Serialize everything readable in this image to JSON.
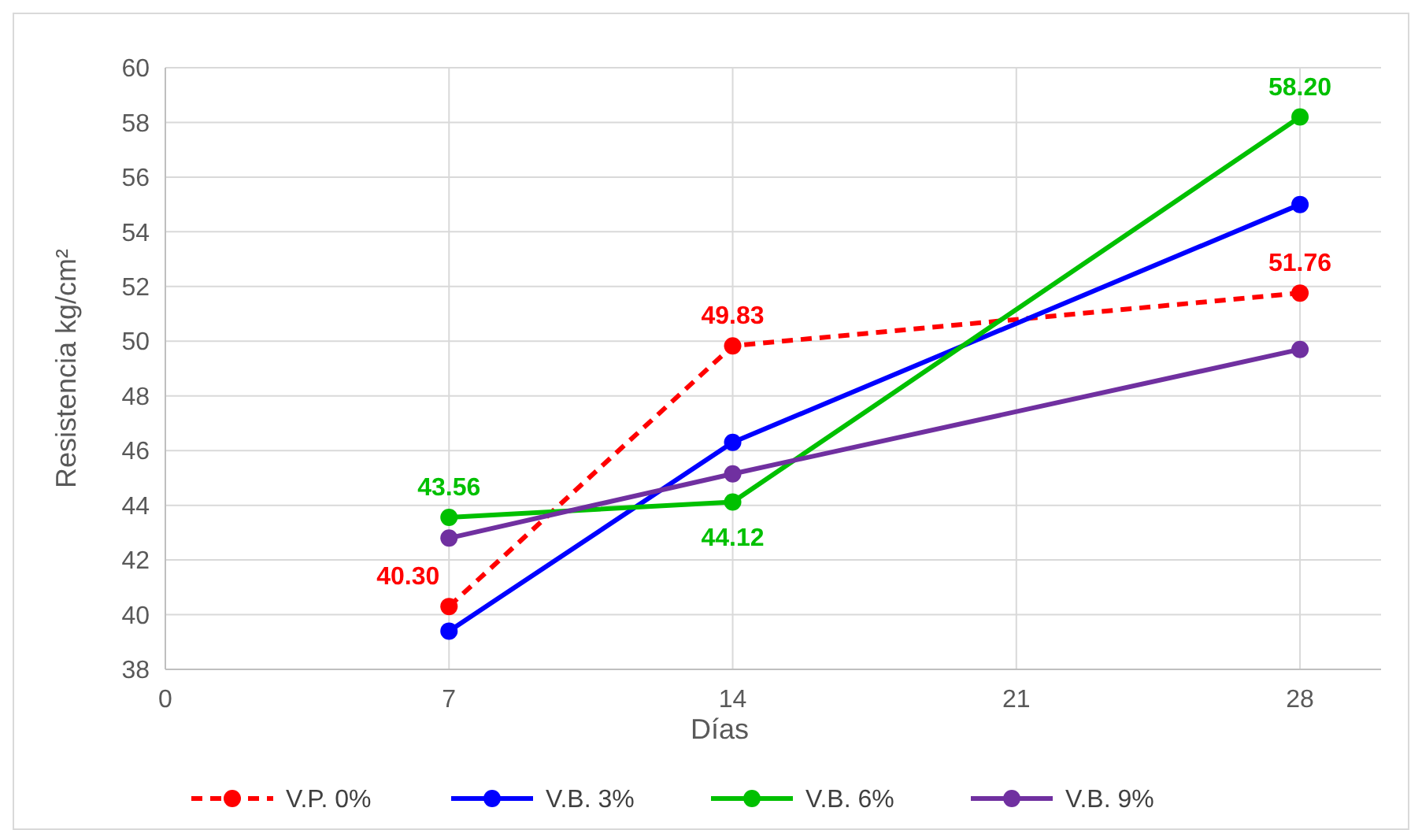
{
  "chart_data": {
    "type": "line",
    "xlabel": "Días",
    "ylabel": "Resistencia kg/cm²",
    "x": [
      7,
      14,
      28
    ],
    "xlim": [
      0,
      30
    ],
    "xticks": [
      0,
      7,
      14,
      21,
      28
    ],
    "ylim": [
      38,
      60
    ],
    "yticks": [
      38,
      40,
      42,
      44,
      46,
      48,
      50,
      52,
      54,
      56,
      58,
      60
    ],
    "grid": true,
    "legend": "bottom",
    "marker": "circle",
    "series": [
      {
        "name": "V.P. 0%",
        "color": "#ff0000",
        "line_style": "dashed",
        "values": [
          40.3,
          49.83,
          51.76
        ],
        "value_labels": [
          "40.30",
          "49.83",
          "51.76"
        ]
      },
      {
        "name": "V.B. 3%",
        "color": "#0000ff",
        "values": [
          39.4,
          46.3,
          55.0
        ]
      },
      {
        "name": "V.B. 6%",
        "color": "#00c000",
        "values": [
          43.56,
          44.12,
          58.2
        ],
        "value_labels": [
          "43.56",
          "44.12",
          "58.20"
        ]
      },
      {
        "name": "V.B. 9%",
        "color": "#7030a0",
        "values": [
          42.8,
          45.15,
          49.7
        ]
      }
    ]
  }
}
